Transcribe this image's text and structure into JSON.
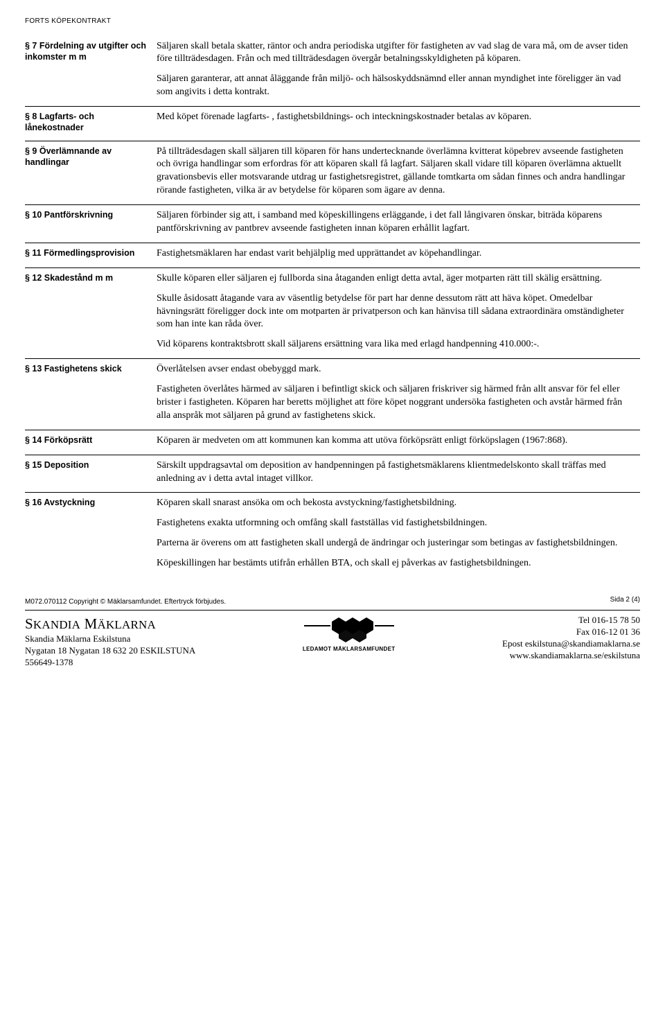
{
  "header": "FORTS KÖPEKONTRAKT",
  "sections": [
    {
      "label": "§ 7 Fördelning av utgifter och inkomster m m",
      "paras": [
        "Säljaren skall betala skatter, räntor och andra periodiska utgifter för fastigheten av vad slag de vara må, om de avser tiden före tillträdesdagen. Från och med tillträdesdagen övergår betalningsskyldigheten på köparen.",
        "Säljaren garanterar, att annat åläggande från miljö- och hälsoskyddsnämnd eller annan myndighet inte föreligger än vad som angivits i detta kontrakt."
      ]
    },
    {
      "label": "§ 8 Lagfarts- och lånekostnader",
      "paras": [
        "Med köpet förenade lagfarts- , fastighetsbildnings- och inteckningskostnader betalas av köparen."
      ]
    },
    {
      "label": "§ 9 Överlämnande av handlingar",
      "paras": [
        "På tillträdesdagen skall säljaren till köparen för hans undertecknande överlämna kvitterat köpebrev avseende fastigheten och övriga handlingar som erfordras för att köparen skall få lagfart. Säljaren skall vidare till köparen överlämna aktuellt gravationsbevis eller motsvarande utdrag ur fastighetsregistret, gällande tomtkarta om sådan finnes och andra handlingar rörande fastigheten, vilka är av betydelse för köparen som ägare av denna."
      ]
    },
    {
      "label": "§ 10 Pantförskrivning",
      "paras": [
        "Säljaren förbinder sig att, i samband med köpeskillingens erläggande, i det fall långivaren önskar, biträda köparens pantförskrivning av pantbrev avseende fastigheten innan köparen erhållit lagfart."
      ]
    },
    {
      "label": "§ 11 Förmedlingsprovision",
      "paras": [
        "Fastighetsmäklaren har endast varit behjälplig med upprättandet av köpehandlingar."
      ]
    },
    {
      "label": "§ 12 Skadestånd m m",
      "paras": [
        "Skulle köparen eller säljaren ej fullborda sina åtaganden enligt detta avtal, äger motparten rätt till skälig ersättning.",
        "Skulle åsidosatt åtagande vara av väsentlig betydelse för part har denne dessutom rätt att häva köpet. Omedelbar hävningsrätt föreligger dock inte om motparten är privatperson och kan hänvisa till sådana extraordinära omständigheter som han inte kan råda över.",
        "Vid köparens kontraktsbrott skall säljarens ersättning vara lika med erlagd handpenning 410.000:-."
      ]
    },
    {
      "label": "§ 13 Fastighetens skick",
      "paras": [
        "Överlåtelsen avser endast obebyggd mark.",
        "Fastigheten överlåtes härmed av säljaren i befintligt skick och säljaren friskriver sig härmed från allt ansvar för fel eller brister i fastigheten. Köparen har beretts möjlighet att före köpet noggrant undersöka fastigheten och avstår härmed från alla anspråk mot säljaren på grund av fastighetens skick."
      ]
    },
    {
      "label": "§ 14 Förköpsrätt",
      "paras": [
        "Köparen är medveten om att kommunen kan komma att utöva förköpsrätt enligt förköpslagen (1967:868)."
      ]
    },
    {
      "label": "§ 15 Deposition",
      "paras": [
        "Särskilt uppdragsavtal om deposition av handpenningen på fastighetsmäklarens klientmedelskonto skall träffas med anledning av i detta avtal intaget villkor."
      ]
    },
    {
      "label": "§ 16 Avstyckning",
      "paras": [
        "Köparen skall snarast ansöka om och bekosta avstyckning/fastighetsbildning.",
        "Fastighetens exakta utformning och omfång skall fastställas vid fastighetsbildningen.",
        "Parterna är överens om att fastigheten skall undergå de ändringar och justeringar som betingas av fastighetsbildningen.",
        "Köpeskillingen har bestämts utifrån erhållen BTA, och skall ej påverkas av fastighetsbildningen."
      ]
    }
  ],
  "footer": {
    "copyright": "M072.070112 Copyright © Mäklarsamfundet. Eftertryck förbjudes.",
    "sida": "Sida 2 (4)",
    "brand": "SKANDIA MÄKLARNA",
    "left": [
      "Skandia Mäklarna Eskilstuna",
      "Nygatan 18 Nygatan 18 632 20  ESKILSTUNA",
      "556649-1378"
    ],
    "logo_text": "LEDAMOT MÄKLARSAMFUNDET",
    "right": [
      "Tel 016-15 78 50",
      "Fax 016-12 01 36",
      "Epost eskilstuna@skandiamaklarna.se",
      "www.skandiamaklarna.se/eskilstuna"
    ]
  }
}
